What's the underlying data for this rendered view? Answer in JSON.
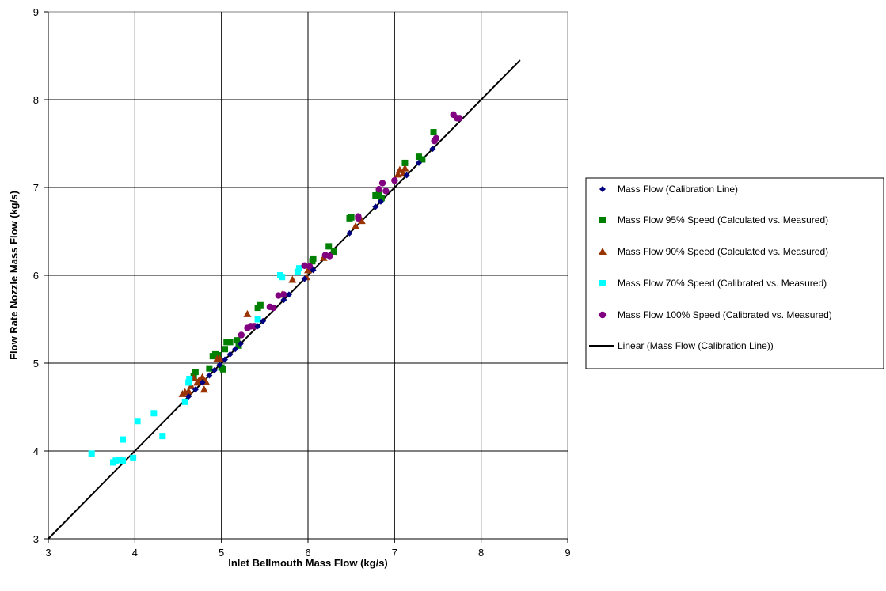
{
  "chart_data": {
    "type": "scatter",
    "xlabel": "Inlet Bellmouth Mass Flow (kg/s)",
    "ylabel": "Flow Rate Nozzle Mass Flow (kg/s)",
    "xlim": [
      3,
      9
    ],
    "ylim": [
      3,
      9
    ],
    "xticks": [
      3,
      4,
      5,
      6,
      7,
      8,
      9
    ],
    "yticks": [
      3,
      4,
      5,
      6,
      7,
      8,
      9
    ],
    "grid": true,
    "legend_position": "right",
    "series": [
      {
        "name": "Mass Flow (Calibration Line)",
        "marker": "diamond",
        "color": "#000080",
        "points": [
          [
            4.62,
            4.62
          ],
          [
            4.7,
            4.7
          ],
          [
            4.78,
            4.78
          ],
          [
            4.86,
            4.86
          ],
          [
            4.92,
            4.92
          ],
          [
            4.98,
            4.98
          ],
          [
            5.04,
            5.04
          ],
          [
            5.1,
            5.1
          ],
          [
            5.16,
            5.16
          ],
          [
            5.22,
            5.22
          ],
          [
            5.42,
            5.42
          ],
          [
            5.48,
            5.48
          ],
          [
            5.72,
            5.72
          ],
          [
            5.78,
            5.78
          ],
          [
            5.96,
            5.96
          ],
          [
            6.06,
            6.06
          ],
          [
            6.48,
            6.48
          ],
          [
            6.78,
            6.78
          ],
          [
            6.84,
            6.84
          ],
          [
            7.14,
            7.14
          ],
          [
            7.28,
            7.28
          ],
          [
            7.44,
            7.44
          ]
        ]
      },
      {
        "name": "Mass Flow 95% Speed (Calculated vs. Measured)",
        "marker": "square",
        "color": "#008000",
        "points": [
          [
            4.68,
            4.85
          ],
          [
            4.7,
            4.9
          ],
          [
            4.86,
            4.94
          ],
          [
            4.9,
            5.08
          ],
          [
            4.93,
            5.1
          ],
          [
            4.96,
            5.09
          ],
          [
            5.0,
            4.95
          ],
          [
            5.02,
            4.93
          ],
          [
            5.04,
            5.16
          ],
          [
            5.06,
            5.24
          ],
          [
            5.1,
            5.24
          ],
          [
            5.18,
            5.26
          ],
          [
            5.2,
            5.2
          ],
          [
            5.42,
            5.63
          ],
          [
            5.45,
            5.66
          ],
          [
            6.05,
            6.16
          ],
          [
            6.06,
            6.19
          ],
          [
            6.24,
            6.33
          ],
          [
            6.3,
            6.27
          ],
          [
            6.48,
            6.65
          ],
          [
            6.5,
            6.66
          ],
          [
            6.78,
            6.91
          ],
          [
            6.82,
            6.93
          ],
          [
            6.85,
            6.88
          ],
          [
            7.12,
            7.28
          ],
          [
            7.28,
            7.35
          ],
          [
            7.32,
            7.32
          ],
          [
            7.45,
            7.63
          ]
        ]
      },
      {
        "name": "Mass Flow 90% Speed (Calculated vs. Measured)",
        "marker": "triangle",
        "color": "#993300",
        "points": [
          [
            4.55,
            4.65
          ],
          [
            4.58,
            4.67
          ],
          [
            4.62,
            4.68
          ],
          [
            4.65,
            4.74
          ],
          [
            4.68,
            4.83
          ],
          [
            4.72,
            4.78
          ],
          [
            4.74,
            4.8
          ],
          [
            4.78,
            4.84
          ],
          [
            4.8,
            4.7
          ],
          [
            4.82,
            4.79
          ],
          [
            4.95,
            5.05
          ],
          [
            4.98,
            5.05
          ],
          [
            5.3,
            5.56
          ],
          [
            5.7,
            5.78
          ],
          [
            5.82,
            5.95
          ],
          [
            5.98,
            5.98
          ],
          [
            6.0,
            6.06
          ],
          [
            6.18,
            6.2
          ],
          [
            6.55,
            6.56
          ],
          [
            6.62,
            6.62
          ],
          [
            7.04,
            7.15
          ],
          [
            7.06,
            7.2
          ],
          [
            7.1,
            7.16
          ],
          [
            7.12,
            7.22
          ]
        ]
      },
      {
        "name": "Mass Flow 70% Speed (Calibrated vs. Measured)",
        "marker": "square",
        "color": "#00FFFF",
        "points": [
          [
            3.5,
            3.97
          ],
          [
            3.75,
            3.87
          ],
          [
            3.78,
            3.89
          ],
          [
            3.82,
            3.9
          ],
          [
            3.86,
            4.13
          ],
          [
            3.86,
            3.89
          ],
          [
            3.98,
            3.92
          ],
          [
            4.03,
            4.34
          ],
          [
            4.22,
            4.43
          ],
          [
            4.32,
            4.17
          ],
          [
            4.58,
            4.56
          ],
          [
            4.62,
            4.78
          ],
          [
            4.63,
            4.82
          ],
          [
            5.42,
            5.5
          ],
          [
            5.68,
            6.0
          ],
          [
            5.7,
            5.98
          ],
          [
            5.88,
            6.04
          ],
          [
            5.9,
            6.08
          ]
        ]
      },
      {
        "name": "Mass Flow 100% Speed (Calibrated vs. Measured)",
        "marker": "circle",
        "color": "#800080",
        "points": [
          [
            5.23,
            5.32
          ],
          [
            5.3,
            5.4
          ],
          [
            5.34,
            5.42
          ],
          [
            5.38,
            5.42
          ],
          [
            5.56,
            5.64
          ],
          [
            5.6,
            5.63
          ],
          [
            5.66,
            5.77
          ],
          [
            5.72,
            5.78
          ],
          [
            5.96,
            6.11
          ],
          [
            6.02,
            6.1
          ],
          [
            6.2,
            6.23
          ],
          [
            6.25,
            6.22
          ],
          [
            6.58,
            6.65
          ],
          [
            6.58,
            6.67
          ],
          [
            6.82,
            6.98
          ],
          [
            6.86,
            7.05
          ],
          [
            6.9,
            6.96
          ],
          [
            7.0,
            7.08
          ],
          [
            7.46,
            7.53
          ],
          [
            7.48,
            7.56
          ],
          [
            7.68,
            7.83
          ],
          [
            7.72,
            7.79
          ],
          [
            7.75,
            7.79
          ]
        ]
      },
      {
        "name": "Linear (Mass Flow (Calibration Line))",
        "type": "line",
        "color": "#000000",
        "points": [
          [
            3.0,
            3.0
          ],
          [
            8.45,
            8.45
          ]
        ]
      }
    ]
  }
}
